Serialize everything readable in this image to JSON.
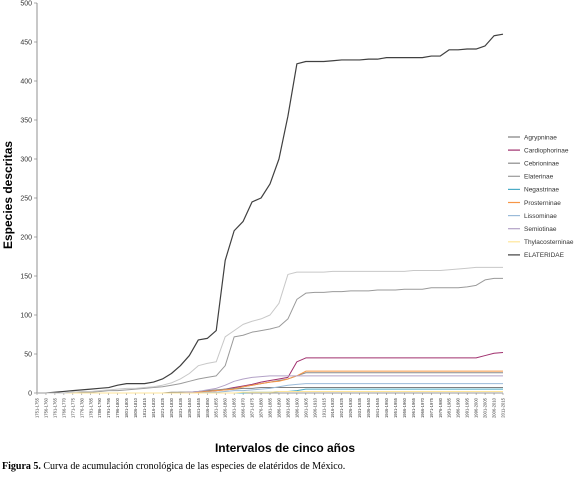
{
  "caption": {
    "label": "Figura 5.",
    "text": "Curva de acumulación cronológica de las especies de elatéridos de México."
  },
  "chart_data": {
    "type": "line",
    "title": "",
    "xlabel": "Intervalos de cinco años",
    "ylabel": "Especies descritas",
    "ylim": [
      0,
      500
    ],
    "yticks": [
      0,
      50,
      100,
      150,
      200,
      250,
      300,
      350,
      400,
      450,
      500
    ],
    "grid": false,
    "legend_position": "right",
    "categories": [
      "1751-1755",
      "1756-1760",
      "1761-1765",
      "1766-1770",
      "1771-1775",
      "1776-1780",
      "1781-1785",
      "1786-1790",
      "1791-1795",
      "1796-1800",
      "1801-1805",
      "1806-1810",
      "1811-1815",
      "1816-1820",
      "1821-1825",
      "1826-1830",
      "1831-1835",
      "1836-1840",
      "1841-1845",
      "1846-1850",
      "1851-1855",
      "1856-1860",
      "1861-1865",
      "1866-1870",
      "1871-1875",
      "1876-1880",
      "1881-1885",
      "1886-1890",
      "1891-1895",
      "1896-1900",
      "1901-1905",
      "1906-1910",
      "1911-1915",
      "1916-1920",
      "1921-1925",
      "1926-1930",
      "1931-1935",
      "1936-1940",
      "1941-1945",
      "1946-1950",
      "1951-1955",
      "1956-1960",
      "1961-1965",
      "1966-1970",
      "1971-1975",
      "1976-1980",
      "1981-1985",
      "1986-1990",
      "1991-1995",
      "1996-2000",
      "2001-2005",
      "2006-2010",
      "2011-2015"
    ],
    "series": [
      {
        "name": "Agrypninae",
        "color": "#7f7f7f",
        "values": [
          0,
          0,
          0,
          0,
          0,
          0,
          0,
          0,
          0,
          0,
          0,
          0,
          0,
          0,
          0,
          1,
          1,
          1,
          2,
          3,
          3,
          4,
          5,
          6,
          6,
          7,
          7,
          7,
          7,
          7,
          7,
          7,
          7,
          7,
          7,
          7,
          7,
          7,
          7,
          7,
          7,
          7,
          7,
          7,
          7,
          7,
          7,
          7,
          7,
          7,
          7,
          7,
          7
        ]
      },
      {
        "name": "Cardiophorinae",
        "color": "#a0306e",
        "values": [
          0,
          0,
          0,
          0,
          0,
          0,
          0,
          0,
          0,
          0,
          0,
          0,
          0,
          0,
          0,
          0,
          0,
          1,
          1,
          2,
          3,
          5,
          7,
          9,
          11,
          14,
          16,
          18,
          20,
          40,
          45,
          45,
          45,
          45,
          45,
          45,
          45,
          45,
          45,
          45,
          45,
          45,
          45,
          45,
          45,
          45,
          45,
          45,
          45,
          45,
          48,
          51,
          52
        ]
      },
      {
        "name": "Cebrioninae",
        "color": "#8a8a8a",
        "values": [
          0,
          0,
          0,
          0,
          0,
          0,
          0,
          0,
          0,
          0,
          0,
          0,
          0,
          0,
          0,
          0,
          1,
          1,
          2,
          3,
          4,
          5,
          6,
          8,
          10,
          12,
          14,
          16,
          18,
          22,
          26,
          26,
          26,
          26,
          26,
          26,
          26,
          26,
          26,
          26,
          26,
          26,
          26,
          26,
          26,
          26,
          26,
          26,
          26,
          26,
          26,
          26,
          26
        ]
      },
      {
        "name": "Elaterinae",
        "color": "#9a9a9a",
        "values": [
          0,
          0,
          0,
          0,
          1,
          1,
          1,
          2,
          3,
          3,
          4,
          5,
          6,
          7,
          8,
          10,
          12,
          15,
          18,
          20,
          22,
          35,
          72,
          74,
          78,
          80,
          82,
          85,
          95,
          120,
          128,
          129,
          129,
          130,
          130,
          131,
          131,
          131,
          132,
          132,
          132,
          133,
          133,
          133,
          135,
          135,
          135,
          135,
          136,
          138,
          145,
          147,
          147
        ]
      },
      {
        "name": "Negastrinae",
        "color": "#4bacc6",
        "values": [
          0,
          0,
          0,
          0,
          0,
          0,
          0,
          0,
          0,
          0,
          0,
          0,
          0,
          0,
          0,
          0,
          0,
          0,
          0,
          0,
          0,
          0,
          0,
          0,
          1,
          1,
          1,
          2,
          2,
          3,
          5,
          5,
          5,
          5,
          5,
          5,
          5,
          5,
          5,
          5,
          5,
          5,
          5,
          5,
          5,
          5,
          5,
          5,
          5,
          5,
          5,
          5,
          5
        ]
      },
      {
        "name": "Prosterninae",
        "color": "#f79646",
        "values": [
          0,
          0,
          0,
          0,
          0,
          0,
          0,
          0,
          0,
          0,
          0,
          0,
          0,
          0,
          0,
          0,
          0,
          0,
          1,
          2,
          3,
          4,
          5,
          8,
          10,
          12,
          14,
          15,
          18,
          22,
          28,
          28,
          28,
          28,
          28,
          28,
          28,
          28,
          28,
          28,
          28,
          28,
          28,
          28,
          28,
          28,
          28,
          28,
          28,
          28,
          28,
          28,
          28
        ]
      },
      {
        "name": "Lissominae",
        "color": "#9bbbd9",
        "values": [
          0,
          0,
          0,
          0,
          0,
          0,
          0,
          0,
          0,
          0,
          0,
          0,
          0,
          0,
          0,
          0,
          0,
          0,
          0,
          1,
          1,
          2,
          3,
          3,
          4,
          5,
          6,
          8,
          10,
          11,
          12,
          12,
          12,
          12,
          12,
          12,
          12,
          12,
          12,
          12,
          12,
          12,
          12,
          12,
          12,
          12,
          12,
          12,
          12,
          12,
          12,
          12,
          12
        ]
      },
      {
        "name": "Semiotinae",
        "color": "#b3a2c7",
        "values": [
          0,
          0,
          0,
          0,
          0,
          0,
          0,
          0,
          0,
          0,
          0,
          0,
          0,
          0,
          0,
          0,
          0,
          1,
          2,
          4,
          6,
          10,
          15,
          18,
          20,
          21,
          22,
          22,
          22,
          22,
          22,
          22,
          22,
          22,
          22,
          22,
          22,
          22,
          22,
          22,
          22,
          22,
          22,
          22,
          22,
          22,
          22,
          22,
          22,
          22,
          22,
          22,
          22
        ]
      },
      {
        "name": "Thylacosterninae",
        "color": "#ffe699",
        "values": [
          0,
          0,
          0,
          0,
          0,
          0,
          0,
          0,
          0,
          0,
          0,
          0,
          0,
          0,
          0,
          0,
          0,
          0,
          0,
          0,
          0,
          0,
          0,
          1,
          1,
          1,
          1,
          2,
          2,
          2,
          2,
          2,
          2,
          2,
          2,
          2,
          2,
          2,
          2,
          2,
          2,
          2,
          2,
          2,
          2,
          2,
          2,
          2,
          2,
          2,
          2,
          2,
          2
        ]
      },
      {
        "name": "ELATERIDAE",
        "color": "#404040",
        "values": [
          0,
          0,
          1,
          2,
          3,
          4,
          5,
          6,
          7,
          10,
          12,
          12,
          12,
          14,
          18,
          25,
          35,
          48,
          68,
          70,
          80,
          170,
          208,
          220,
          245,
          250,
          268,
          300,
          355,
          422,
          425,
          425,
          425,
          426,
          427,
          427,
          427,
          428,
          428,
          430,
          430,
          430,
          430,
          430,
          432,
          432,
          440,
          440,
          441,
          441,
          445,
          458,
          460
        ]
      },
      {
        "name": "",
        "color": "#c8c8c8",
        "values": [
          0,
          0,
          0,
          0,
          1,
          2,
          2,
          3,
          4,
          5,
          6,
          6,
          7,
          8,
          10,
          13,
          18,
          25,
          35,
          38,
          40,
          72,
          80,
          88,
          92,
          95,
          100,
          115,
          152,
          155,
          155,
          155,
          155,
          156,
          156,
          156,
          156,
          156,
          156,
          156,
          156,
          156,
          157,
          157,
          157,
          157,
          158,
          159,
          160,
          161,
          161,
          161,
          161
        ]
      }
    ],
    "legend_order": [
      "Agrypninae",
      "Cardiophorinae",
      "Cebrioninae",
      "Elaterinae",
      "Negastrinae",
      "Prosterninae",
      "Lissominae",
      "Semiotinae",
      "Thylacosterninae",
      "ELATERIDAE"
    ]
  }
}
